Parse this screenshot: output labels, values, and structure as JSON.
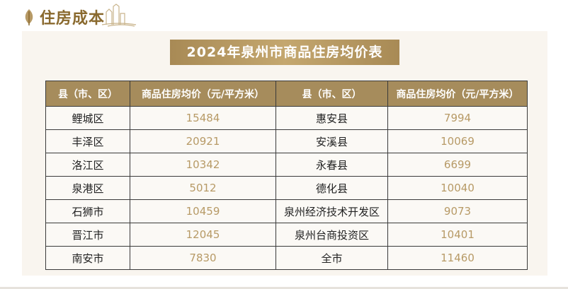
{
  "section_title": "住房成本",
  "table_title": "2024年泉州市商品住房均价表",
  "columns": [
    "县（市、区）",
    "商品住房均价（元/平方米）",
    "县（市、区）",
    "商品住房均价（元/平方米）"
  ],
  "rows": [
    {
      "left_area": "鲤城区",
      "left_price": "15484",
      "right_area": "惠安县",
      "right_price": "7994"
    },
    {
      "left_area": "丰泽区",
      "left_price": "20921",
      "right_area": "安溪县",
      "right_price": "10069"
    },
    {
      "left_area": "洛江区",
      "left_price": "10342",
      "right_area": "永春县",
      "right_price": "6699"
    },
    {
      "left_area": "泉港区",
      "left_price": "5012",
      "right_area": "德化县",
      "right_price": "10040"
    },
    {
      "left_area": "石狮市",
      "left_price": "10459",
      "right_area": "泉州经济技术开发区",
      "right_price": "9073"
    },
    {
      "left_area": "晋江市",
      "left_price": "12045",
      "right_area": "泉州台商投资区",
      "right_price": "10401"
    },
    {
      "left_area": "南安市",
      "left_price": "7830",
      "right_area": "全市",
      "right_price": "11460"
    }
  ],
  "icons": {
    "header_logo": "leaf-icon",
    "header_decoration": "skyline-icon"
  },
  "colors": {
    "accent": "#a68c5c",
    "title_text": "#8a6a2f",
    "number_text": "#b79a66",
    "panel_bg": "#f9f5ef"
  }
}
